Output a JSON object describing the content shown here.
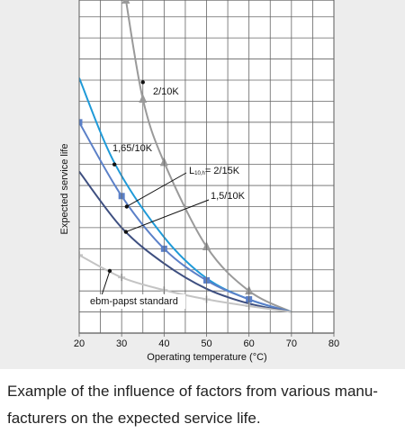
{
  "chart_data": {
    "type": "line",
    "xlabel": "Operating temperature (°C)",
    "ylabel": "Expected service life",
    "xlim": [
      20,
      80
    ],
    "xticks": [
      20,
      30,
      40,
      50,
      60,
      70,
      80
    ],
    "xgrid": [
      25,
      35,
      45,
      55,
      65,
      75
    ],
    "ylim": [
      0,
      15.8
    ],
    "ygrid": [
      1,
      2,
      3,
      4,
      5,
      6,
      7,
      8,
      9,
      10,
      11,
      12,
      13,
      14,
      15
    ],
    "series": [
      {
        "name": "2/10K",
        "color": "#9a9a9a",
        "marker": "triangle",
        "x": [
          31,
          35,
          40,
          50,
          60,
          70
        ],
        "values": [
          15.8,
          11.1,
          8.1,
          4.1,
          2.0,
          1.0
        ]
      },
      {
        "name": "1,65/10K",
        "color": "#1f9ad8",
        "marker": "none",
        "x": [
          20,
          28.5,
          40,
          50,
          60,
          70
        ],
        "values": [
          12.1,
          8.0,
          4.55,
          2.6,
          1.6,
          1.0
        ]
      },
      {
        "name": "= 2/15K",
        "name_prefix": "L",
        "name_sub": "10,h",
        "color": "#5b80c8",
        "marker": "square",
        "x": [
          20,
          30,
          40,
          50,
          60,
          70
        ],
        "values": [
          10.0,
          6.5,
          4.0,
          2.5,
          1.6,
          1.0
        ]
      },
      {
        "name": "1,5/10K",
        "color": "#3e4f80",
        "marker": "none",
        "x": [
          20,
          30,
          40,
          50,
          60,
          70
        ],
        "values": [
          7.66,
          5.0,
          3.3,
          2.1,
          1.4,
          1.0
        ]
      },
      {
        "name": "ebm-papst standard",
        "color": "#c4c4c4",
        "marker": "cross",
        "x": [
          20,
          30,
          40,
          50,
          60,
          70
        ],
        "values": [
          3.7,
          2.64,
          2.04,
          1.6,
          1.28,
          1.0
        ]
      }
    ]
  },
  "caption": [
    "Example of the influence of factors from various manu-",
    "facturers on the expected service life."
  ]
}
